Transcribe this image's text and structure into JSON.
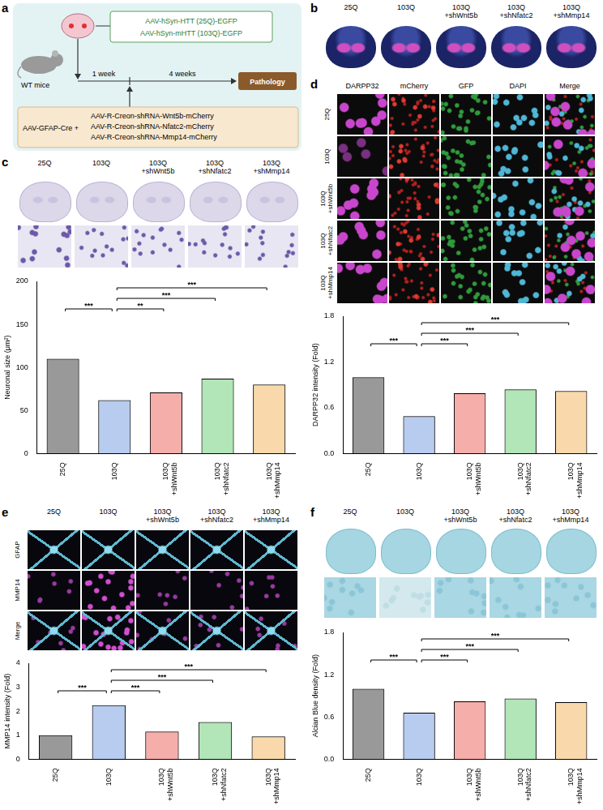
{
  "panels": {
    "a": {
      "label": "a",
      "top_box": [
        "AAV-hSyn-HTT (25Q)-EGFP",
        "AAV-hSyn-mHTT (103Q)-EGFP"
      ],
      "mouse": "WT mice",
      "timeline": [
        "1 week",
        "4 weeks"
      ],
      "end": "Pathology",
      "bottom_box_left": "AAV-GFAP-Cre +",
      "bottom_box": [
        "AAV-R-Creon-shRNA-Wnt5b-mCherry",
        "AAV-R-Creon-shRNA-Nfatc2-mCherry",
        "AAV-R-Creon-shRNA-Mmp14-mCherry"
      ]
    },
    "b": {
      "label": "b",
      "images": [
        "25Q",
        "103Q",
        "103Q +shWnt5b",
        "103Q +shNfatc2",
        "103Q +shMmp14"
      ]
    },
    "c": {
      "label": "c",
      "images": [
        "25Q",
        "103Q",
        "103Q +shWnt5b",
        "103Q +shNfatc2",
        "103Q +shMmp14"
      ]
    },
    "d": {
      "label": "d",
      "columns": [
        "DARPP32",
        "mCherry",
        "GFP",
        "DAPI",
        "Merge"
      ],
      "rows": [
        "25Q",
        "103Q",
        "103Q +shWnt5b",
        "103Q +shNfatc2",
        "103Q +shMmp14"
      ]
    },
    "e": {
      "label": "e",
      "columns": [
        "25Q",
        "103Q",
        "103Q +shWnt5b",
        "103Q +shNfatc2",
        "103Q +shMmp14"
      ],
      "rows": [
        "GFAP",
        "MMP14",
        "Merge"
      ]
    },
    "f": {
      "label": "f",
      "images": [
        "25Q",
        "103Q",
        "103Q +shWnt5b",
        "103Q +shNfatc2",
        "103Q +shMmp14"
      ]
    }
  },
  "chart_data": [
    {
      "type": "bar",
      "y_label": "Neuronal size (μm²)",
      "categories": [
        "25Q",
        "103Q",
        "103Q +shWnt5b",
        "103Q +shNfatc2",
        "103Q +shMmp14"
      ],
      "values": [
        110,
        62,
        71,
        87,
        80
      ],
      "colors": [
        "#000000",
        "#4a7fd6",
        "#e8352e",
        "#3fbf4a",
        "#f0a030"
      ],
      "ylim": [
        0,
        200
      ],
      "yticks": [
        0,
        50,
        100,
        150,
        200
      ],
      "grid": false,
      "significance": [
        {
          "groups": [
            "25Q",
            "103Q"
          ],
          "label": "***"
        },
        {
          "groups": [
            "103Q",
            "103Q +shWnt5b"
          ],
          "label": "**"
        },
        {
          "groups": [
            "103Q",
            "103Q +shNfatc2"
          ],
          "label": "***"
        },
        {
          "groups": [
            "103Q",
            "103Q +shMmp14"
          ],
          "label": "***"
        }
      ]
    },
    {
      "type": "bar",
      "y_label": "DARPP32 intensity (Fold)",
      "categories": [
        "25Q",
        "103Q",
        "103Q +shWnt5b",
        "103Q +shNfatc2",
        "103Q +shMmp14"
      ],
      "values": [
        1.0,
        0.49,
        0.79,
        0.84,
        0.82
      ],
      "colors": [
        "#000000",
        "#4a7fd6",
        "#e8352e",
        "#3fbf4a",
        "#f0a030"
      ],
      "ylim": [
        0,
        1.8
      ],
      "yticks": [
        {
          "value": 0,
          "label": "0.0"
        },
        0.6,
        1.2,
        1.8
      ],
      "grid": false,
      "significance": [
        {
          "groups": [
            "25Q",
            "103Q"
          ],
          "label": "***"
        },
        {
          "groups": [
            "103Q",
            "103Q +shWnt5b"
          ],
          "label": "***"
        },
        {
          "groups": [
            "103Q",
            "103Q +shNfatc2"
          ],
          "label": "***"
        },
        {
          "groups": [
            "103Q",
            "103Q +shMmp14"
          ],
          "label": "***"
        }
      ]
    },
    {
      "type": "bar",
      "y_label": "MMP14 intensity (Fold)",
      "categories": [
        "25Q",
        "103Q",
        "103Q +shWnt5b",
        "103Q +shNfatc2",
        "103Q +shMmp14"
      ],
      "values": [
        1.0,
        2.25,
        1.15,
        1.55,
        0.95
      ],
      "colors": [
        "#000000",
        "#4a7fd6",
        "#e8352e",
        "#3fbf4a",
        "#f0a030"
      ],
      "ylim": [
        0,
        4
      ],
      "yticks": [
        0,
        1,
        2,
        3,
        4
      ],
      "grid": false,
      "significance": [
        {
          "groups": [
            "25Q",
            "103Q"
          ],
          "label": "***"
        },
        {
          "groups": [
            "103Q",
            "103Q +shWnt5b"
          ],
          "label": "***"
        },
        {
          "groups": [
            "103Q",
            "103Q +shNfatc2"
          ],
          "label": "***"
        },
        {
          "groups": [
            "103Q",
            "103Q +shMmp14"
          ],
          "label": "***"
        }
      ]
    },
    {
      "type": "bar",
      "y_label": "Alcian Blue density (Fold)",
      "categories": [
        "25Q",
        "103Q",
        "103Q +shWnt5b",
        "103Q +shNfatc2",
        "103Q +shMmp14"
      ],
      "values": [
        1.0,
        0.66,
        0.82,
        0.86,
        0.81
      ],
      "colors": [
        "#000000",
        "#4a7fd6",
        "#e8352e",
        "#3fbf4a",
        "#f0a030"
      ],
      "ylim": [
        0,
        1.8
      ],
      "yticks": [
        {
          "value": 0,
          "label": "0.0"
        },
        0.6,
        1.2,
        1.8
      ],
      "grid": false,
      "significance": [
        {
          "groups": [
            "25Q",
            "103Q"
          ],
          "label": "***"
        },
        {
          "groups": [
            "103Q",
            "103Q +shWnt5b"
          ],
          "label": "***"
        },
        {
          "groups": [
            "103Q",
            "103Q +shNfatc2"
          ],
          "label": "***"
        },
        {
          "groups": [
            "103Q",
            "103Q +shMmp14"
          ],
          "label": "***"
        }
      ]
    }
  ]
}
